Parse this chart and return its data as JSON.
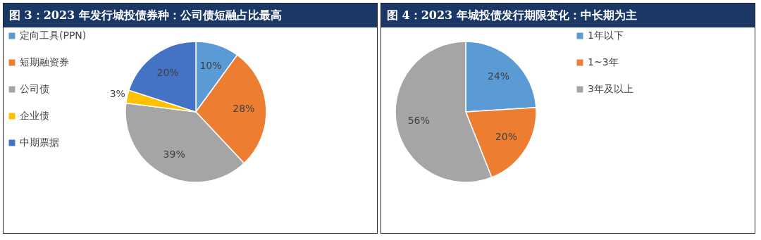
{
  "chart_data": [
    {
      "type": "pie",
      "title": "图 3：2023 年发行城投债券种：公司债短融占比最高",
      "categories": [
        "定向工具(PPN)",
        "短期融资券",
        "公司债",
        "企业债",
        "中期票据"
      ],
      "values": [
        10,
        28,
        39,
        3,
        20
      ],
      "value_labels": [
        "10%",
        "28%",
        "39%",
        "3%",
        "20%"
      ],
      "colors": [
        "#5b9bd5",
        "#ed7d31",
        "#a5a5a5",
        "#ffc000",
        "#4472c4"
      ],
      "legend": "left"
    },
    {
      "type": "pie",
      "title": "图 4：2023 年城投债发行期限变化：中长期为主",
      "categories": [
        "1年以下",
        "1~3年",
        "3年及以上"
      ],
      "values": [
        24,
        20,
        56
      ],
      "value_labels": [
        "24%",
        "20%",
        "56%"
      ],
      "colors": [
        "#5b9bd5",
        "#ed7d31",
        "#a5a5a5"
      ],
      "legend": "right"
    }
  ]
}
